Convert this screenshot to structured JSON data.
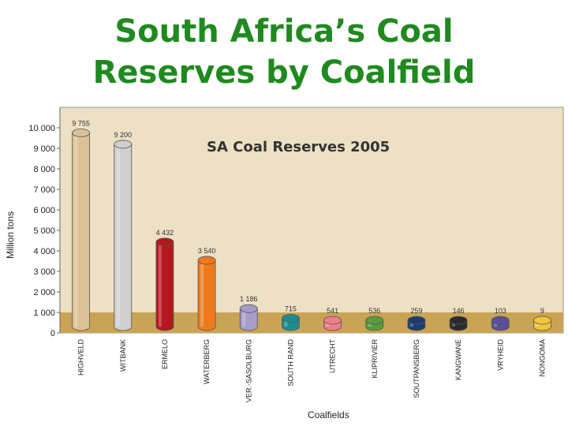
{
  "slide": {
    "title_line1": "South Africa’s Coal",
    "title_line2": "Reserves by Coalfield"
  },
  "chart_data": {
    "type": "bar",
    "title": "SA Coal Reserves 2005",
    "xlabel": "Coalfields",
    "ylabel": "Million tons",
    "ylim": [
      0,
      11000
    ],
    "yticks": [
      0,
      1000,
      2000,
      3000,
      4000,
      5000,
      6000,
      7000,
      8000,
      9000,
      10000
    ],
    "ytick_labels": [
      "0",
      "1 000",
      "2 000",
      "3 000",
      "4 000",
      "5 000",
      "6 000",
      "7 000",
      "8 000",
      "9 000",
      "10 000"
    ],
    "categories": [
      "HIGHVELD",
      "WITBANK",
      "ERMELO",
      "WATERBERG",
      "VER.-SASOLBURG",
      "SOUTH RAND",
      "UTRECHT",
      "KLIPRIVIER",
      "SOUTPANSBERG",
      "KANGWANE",
      "VRYHEID",
      "NONGOMA"
    ],
    "values": [
      9755,
      9200,
      4432,
      3540,
      1186,
      715,
      541,
      536,
      259,
      146,
      103,
      9
    ],
    "value_labels": [
      "9 755",
      "9 200",
      "4 432",
      "3 540",
      "1 186",
      "715",
      "541",
      "536",
      "259",
      "146",
      "103",
      "9"
    ],
    "colors": [
      "#dcc297",
      "#cfcfcf",
      "#b3181e",
      "#ee7a1e",
      "#a89cc8",
      "#1e8c8c",
      "#ee7f86",
      "#5b9a3c",
      "#1f3b6e",
      "#2a2a2a",
      "#5a4f9a",
      "#f2c43a"
    ],
    "background": "#ede0c4",
    "floor_color": "#c9a455",
    "grid": false
  }
}
